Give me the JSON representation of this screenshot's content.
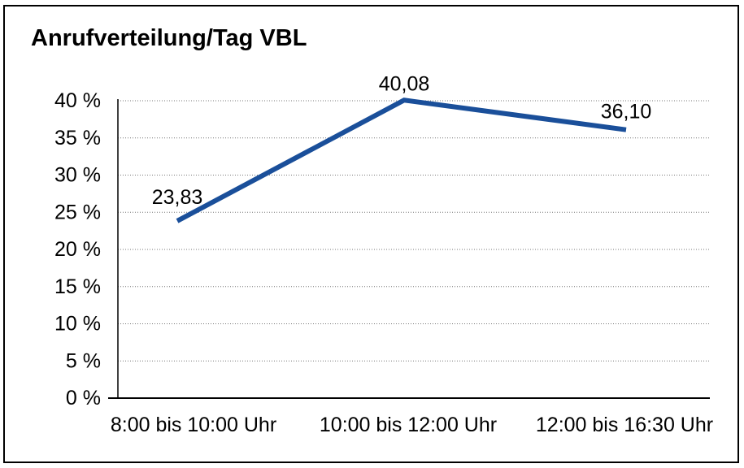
{
  "chart_data": {
    "type": "line",
    "title": "Anrufverteilung/Tag VBL",
    "categories": [
      "8:00 bis 10:00 Uhr",
      "10:00 bis 12:00 Uhr",
      "12:00 bis 16:30 Uhr"
    ],
    "values": [
      23.83,
      40.08,
      36.1
    ],
    "point_labels": [
      "23,83",
      "40,08",
      "36,10"
    ],
    "series_count": 1,
    "xlabel": "",
    "ylabel": "",
    "ylim": [
      0,
      40
    ],
    "ytick_step": 5,
    "ytick_labels": [
      "0 %",
      "5 %",
      "10 %",
      "15 %",
      "20 %",
      "25 %",
      "30 %",
      "35 %",
      "40 %"
    ],
    "legend": "none",
    "grid": "horizontal-dotted",
    "line_color": "#1A4F9A",
    "grid_color": "#777777",
    "axis_color": "#000000",
    "text_color": "#000000",
    "background_color": "#FFFFFF",
    "border_color": "#000000"
  }
}
